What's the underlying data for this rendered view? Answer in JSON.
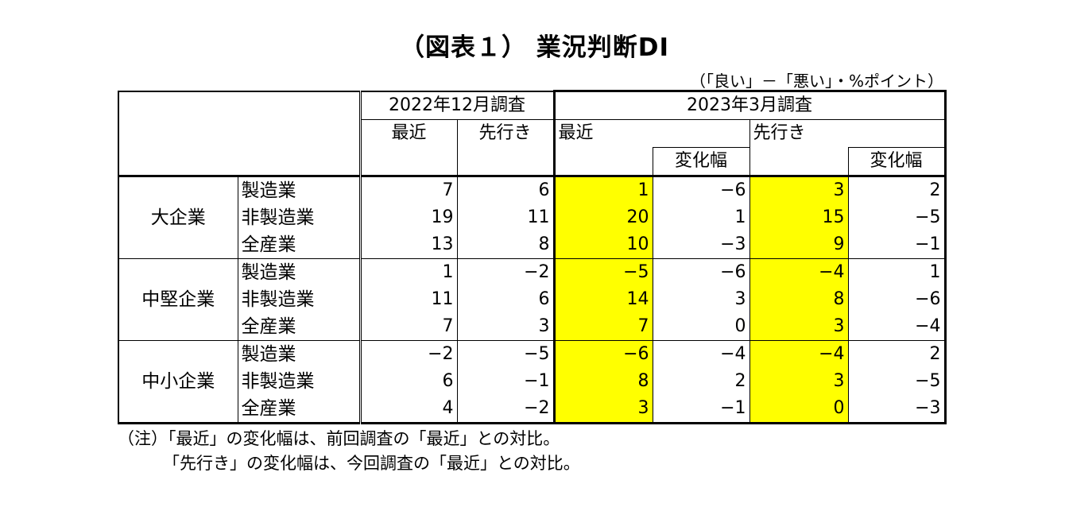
{
  "title": "（図表１） 業況判断DI",
  "unit_note": "（「良い」－「悪い」・%ポイント）",
  "headers": {
    "survey_prev": "2022年12月調査",
    "survey_curr": "2023年3月調査",
    "recent": "最近",
    "outlook": "先行き",
    "change": "変化幅"
  },
  "groups": [
    {
      "name": "大企業",
      "rows": [
        {
          "industry": "製造業",
          "prev_recent": "7",
          "prev_outlook": "6",
          "recent": "1",
          "recent_change": "−6",
          "outlook": "3",
          "outlook_change": "2"
        },
        {
          "industry": "非製造業",
          "prev_recent": "19",
          "prev_outlook": "11",
          "recent": "20",
          "recent_change": "1",
          "outlook": "15",
          "outlook_change": "−5"
        },
        {
          "industry": "全産業",
          "prev_recent": "13",
          "prev_outlook": "8",
          "recent": "10",
          "recent_change": "−3",
          "outlook": "9",
          "outlook_change": "−1"
        }
      ]
    },
    {
      "name": "中堅企業",
      "rows": [
        {
          "industry": "製造業",
          "prev_recent": "1",
          "prev_outlook": "−2",
          "recent": "−5",
          "recent_change": "−6",
          "outlook": "−4",
          "outlook_change": "1"
        },
        {
          "industry": "非製造業",
          "prev_recent": "11",
          "prev_outlook": "6",
          "recent": "14",
          "recent_change": "3",
          "outlook": "8",
          "outlook_change": "−6"
        },
        {
          "industry": "全産業",
          "prev_recent": "7",
          "prev_outlook": "3",
          "recent": "7",
          "recent_change": "0",
          "outlook": "3",
          "outlook_change": "−4"
        }
      ]
    },
    {
      "name": "中小企業",
      "rows": [
        {
          "industry": "製造業",
          "prev_recent": "−2",
          "prev_outlook": "−5",
          "recent": "−6",
          "recent_change": "−4",
          "outlook": "−4",
          "outlook_change": "2"
        },
        {
          "industry": "非製造業",
          "prev_recent": "6",
          "prev_outlook": "−1",
          "recent": "8",
          "recent_change": "2",
          "outlook": "3",
          "outlook_change": "−5"
        },
        {
          "industry": "全産業",
          "prev_recent": "4",
          "prev_outlook": "−2",
          "recent": "3",
          "recent_change": "−1",
          "outlook": "0",
          "outlook_change": "−3"
        }
      ]
    }
  ],
  "notes": [
    "（注）「最近」の変化幅は、前回調査の「最近」との対比。",
    "「先行き」の変化幅は、今回調査の「最近」との対比。"
  ],
  "colors": {
    "highlight": "#ffff00",
    "border": "#000000"
  }
}
